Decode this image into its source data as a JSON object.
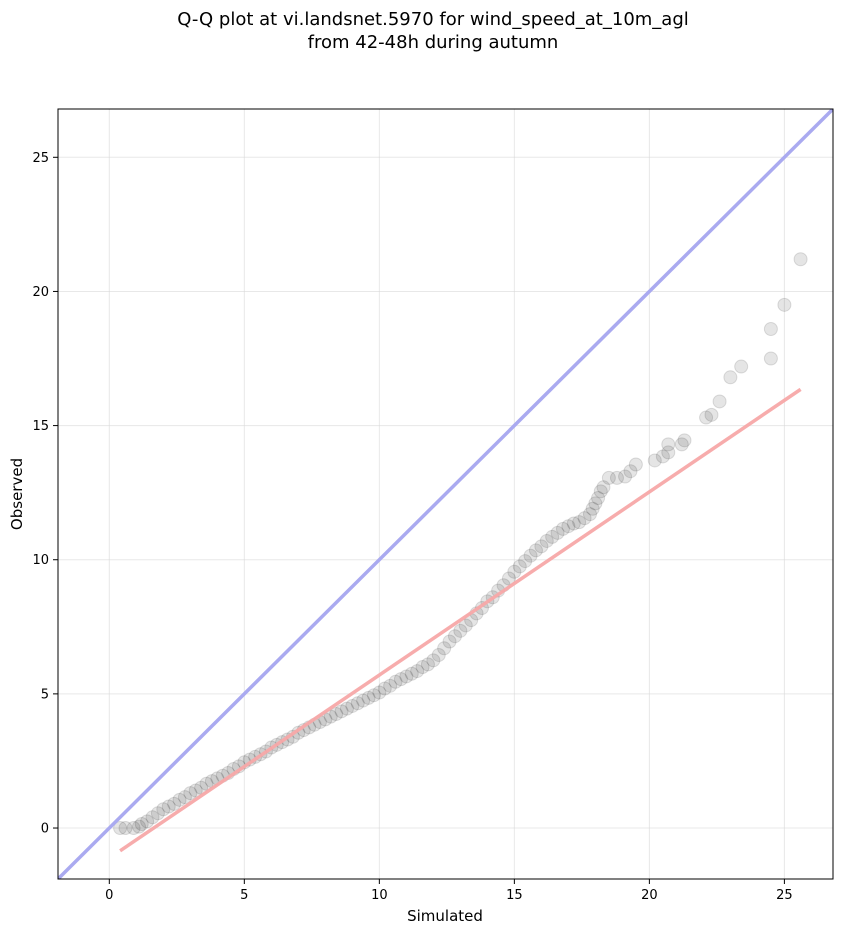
{
  "chart_data": {
    "type": "scatter",
    "title": "Q-Q plot at vi.landsnet.5970 for wind_speed_at_10m_agl",
    "subtitle": "from 42-48h during autumn",
    "xlabel": "Simulated",
    "ylabel": "Observed",
    "xlim": [
      -1.9,
      26.8
    ],
    "ylim": [
      -1.9,
      26.8
    ],
    "xticks": [
      0,
      5,
      10,
      15,
      20,
      25
    ],
    "yticks": [
      0,
      5,
      10,
      15,
      20,
      25
    ],
    "grid": true,
    "colors": {
      "points": "#000000",
      "identity_line": "#aaaaf0",
      "fit_line": "#f7a8a8"
    },
    "identity_line": {
      "from": [
        -1.9,
        -1.9
      ],
      "to": [
        26.8,
        26.8
      ]
    },
    "fit_line": {
      "from": [
        0.4,
        -0.85
      ],
      "to": [
        25.6,
        16.35
      ]
    },
    "quantile_points": [
      [
        0.4,
        0.0
      ],
      [
        0.6,
        0.0
      ],
      [
        0.9,
        0.0
      ],
      [
        1.1,
        0.05
      ],
      [
        1.2,
        0.15
      ],
      [
        1.4,
        0.25
      ],
      [
        1.6,
        0.4
      ],
      [
        1.8,
        0.55
      ],
      [
        2.0,
        0.7
      ],
      [
        2.2,
        0.8
      ],
      [
        2.4,
        0.9
      ],
      [
        2.6,
        1.05
      ],
      [
        2.8,
        1.15
      ],
      [
        3.0,
        1.3
      ],
      [
        3.2,
        1.4
      ],
      [
        3.4,
        1.5
      ],
      [
        3.6,
        1.65
      ],
      [
        3.8,
        1.75
      ],
      [
        4.0,
        1.85
      ],
      [
        4.2,
        1.95
      ],
      [
        4.4,
        2.05
      ],
      [
        4.6,
        2.2
      ],
      [
        4.8,
        2.3
      ],
      [
        5.0,
        2.45
      ],
      [
        5.2,
        2.55
      ],
      [
        5.4,
        2.65
      ],
      [
        5.6,
        2.75
      ],
      [
        5.8,
        2.85
      ],
      [
        6.0,
        3.0
      ],
      [
        6.2,
        3.1
      ],
      [
        6.4,
        3.2
      ],
      [
        6.6,
        3.3
      ],
      [
        6.8,
        3.4
      ],
      [
        7.0,
        3.55
      ],
      [
        7.2,
        3.65
      ],
      [
        7.4,
        3.75
      ],
      [
        7.6,
        3.85
      ],
      [
        7.8,
        3.95
      ],
      [
        8.0,
        4.05
      ],
      [
        8.2,
        4.15
      ],
      [
        8.4,
        4.25
      ],
      [
        8.6,
        4.35
      ],
      [
        8.8,
        4.45
      ],
      [
        9.0,
        4.55
      ],
      [
        9.2,
        4.65
      ],
      [
        9.4,
        4.75
      ],
      [
        9.6,
        4.85
      ],
      [
        9.8,
        4.95
      ],
      [
        10.0,
        5.05
      ],
      [
        10.2,
        5.2
      ],
      [
        10.4,
        5.3
      ],
      [
        10.6,
        5.45
      ],
      [
        10.8,
        5.55
      ],
      [
        11.0,
        5.65
      ],
      [
        11.2,
        5.75
      ],
      [
        11.4,
        5.85
      ],
      [
        11.6,
        6.0
      ],
      [
        11.8,
        6.1
      ],
      [
        12.0,
        6.25
      ],
      [
        12.2,
        6.45
      ],
      [
        12.4,
        6.7
      ],
      [
        12.6,
        6.95
      ],
      [
        12.8,
        7.15
      ],
      [
        13.0,
        7.35
      ],
      [
        13.2,
        7.55
      ],
      [
        13.4,
        7.75
      ],
      [
        13.6,
        8.0
      ],
      [
        13.8,
        8.2
      ],
      [
        14.0,
        8.45
      ],
      [
        14.2,
        8.6
      ],
      [
        14.4,
        8.85
      ],
      [
        14.6,
        9.05
      ],
      [
        14.8,
        9.3
      ],
      [
        15.0,
        9.55
      ],
      [
        15.2,
        9.75
      ],
      [
        15.4,
        9.95
      ],
      [
        15.6,
        10.15
      ],
      [
        15.8,
        10.35
      ],
      [
        16.0,
        10.5
      ],
      [
        16.2,
        10.7
      ],
      [
        16.4,
        10.85
      ],
      [
        16.6,
        11.0
      ],
      [
        16.8,
        11.15
      ],
      [
        17.0,
        11.25
      ],
      [
        17.2,
        11.35
      ],
      [
        17.4,
        11.4
      ],
      [
        17.6,
        11.55
      ],
      [
        17.8,
        11.7
      ],
      [
        17.9,
        11.9
      ],
      [
        18.0,
        12.1
      ],
      [
        18.1,
        12.3
      ],
      [
        18.2,
        12.55
      ],
      [
        18.3,
        12.7
      ],
      [
        18.5,
        13.05
      ],
      [
        18.8,
        13.05
      ],
      [
        19.1,
        13.1
      ],
      [
        19.3,
        13.3
      ],
      [
        19.5,
        13.55
      ],
      [
        20.2,
        13.7
      ],
      [
        20.5,
        13.85
      ],
      [
        20.7,
        14.0
      ],
      [
        20.7,
        14.3
      ],
      [
        21.2,
        14.3
      ],
      [
        21.3,
        14.45
      ],
      [
        22.1,
        15.3
      ],
      [
        22.3,
        15.4
      ],
      [
        22.6,
        15.9
      ],
      [
        23.0,
        16.8
      ],
      [
        23.4,
        17.2
      ],
      [
        24.5,
        17.5
      ],
      [
        24.5,
        18.6
      ],
      [
        25.0,
        19.5
      ],
      [
        25.6,
        21.2
      ]
    ]
  }
}
